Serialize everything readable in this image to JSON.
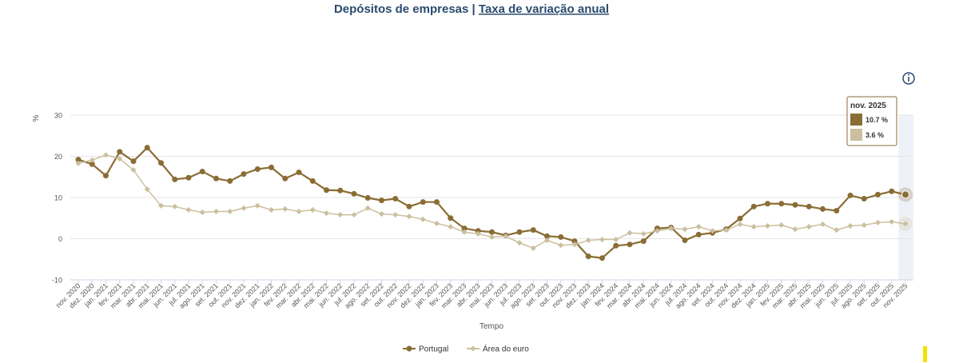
{
  "chart_data": {
    "type": "line",
    "title": "Depósitos de empresas | ",
    "title_link": "Taxa de variação anual",
    "y_label": "%",
    "x_label": "Tempo",
    "categories": [
      "nov. 2020",
      "dez. 2020",
      "jan. 2021",
      "fev. 2021",
      "mar. 2021",
      "abr. 2021",
      "mai. 2021",
      "jun. 2021",
      "jul. 2021",
      "ago. 2021",
      "set. 2021",
      "out. 2021",
      "nov. 2021",
      "dez. 2021",
      "jan. 2022",
      "fev. 2022",
      "mar. 2022",
      "abr. 2022",
      "mai. 2022",
      "jun. 2022",
      "jul. 2022",
      "ago. 2022",
      "set. 2022",
      "out. 2022",
      "nov. 2022",
      "dez. 2022",
      "jan. 2023",
      "fev. 2023",
      "mar. 2023",
      "abr. 2023",
      "mai. 2023",
      "jun. 2023",
      "jul. 2023",
      "ago. 2023",
      "set. 2023",
      "out. 2023",
      "nov. 2023",
      "dez. 2023",
      "jan. 2024",
      "fev. 2024",
      "mar. 2024",
      "abr. 2024",
      "mai. 2024",
      "jun. 2024",
      "jul. 2024",
      "ago. 2024",
      "set. 2024",
      "out. 2024",
      "nov. 2024",
      "dez. 2024",
      "jan. 2025",
      "fev. 2025",
      "mar. 2025",
      "abr. 2025",
      "mai. 2025",
      "jun. 2025",
      "jul. 2025",
      "ago. 2025",
      "set. 2025",
      "out. 2025",
      "nov. 2025"
    ],
    "series": [
      {
        "name": "Portugal",
        "color": "#8a6d35",
        "values": [
          19.2,
          18.1,
          15.3,
          21.1,
          18.8,
          22.1,
          18.4,
          14.4,
          14.8,
          16.3,
          14.6,
          14.0,
          15.7,
          16.9,
          17.3,
          14.6,
          16.1,
          14.0,
          11.8,
          11.7,
          10.9,
          9.9,
          9.3,
          9.7,
          7.8,
          8.9,
          8.9,
          5.0,
          2.5,
          1.9,
          1.6,
          0.8,
          1.6,
          2.1,
          0.6,
          0.4,
          -0.6,
          -4.3,
          -4.7,
          -1.7,
          -1.4,
          -0.6,
          2.5,
          2.7,
          -0.4,
          1.0,
          1.4,
          2.3,
          4.9,
          7.8,
          8.5,
          8.5,
          8.2,
          7.8,
          7.2,
          6.8,
          10.5,
          9.7,
          10.7,
          11.5,
          10.7
        ]
      },
      {
        "name": "Área do euro",
        "color": "#cbbf9f",
        "values": [
          18.3,
          19.1,
          20.3,
          19.4,
          16.7,
          12.0,
          8.0,
          7.8,
          7.0,
          6.4,
          6.6,
          6.6,
          7.4,
          8.0,
          7.0,
          7.2,
          6.6,
          7.0,
          6.2,
          5.8,
          5.8,
          7.4,
          6.0,
          5.8,
          5.4,
          4.7,
          3.7,
          2.9,
          1.6,
          1.2,
          0.4,
          0.6,
          -1.0,
          -2.3,
          -0.4,
          -1.6,
          -1.4,
          -0.4,
          -0.2,
          -0.2,
          1.4,
          1.2,
          1.9,
          2.5,
          2.3,
          2.9,
          1.9,
          2.1,
          3.5,
          2.9,
          3.1,
          3.3,
          2.3,
          2.9,
          3.5,
          2.1,
          3.1,
          3.3,
          3.9,
          4.1,
          3.6
        ]
      }
    ],
    "ylim": [
      -10,
      30
    ],
    "yticks": [
      -10,
      0,
      10,
      20,
      30
    ],
    "grid": true,
    "tooltip": {
      "title": "nov. 2025",
      "lines": [
        "10.7 %",
        "3.6 %"
      ]
    }
  }
}
